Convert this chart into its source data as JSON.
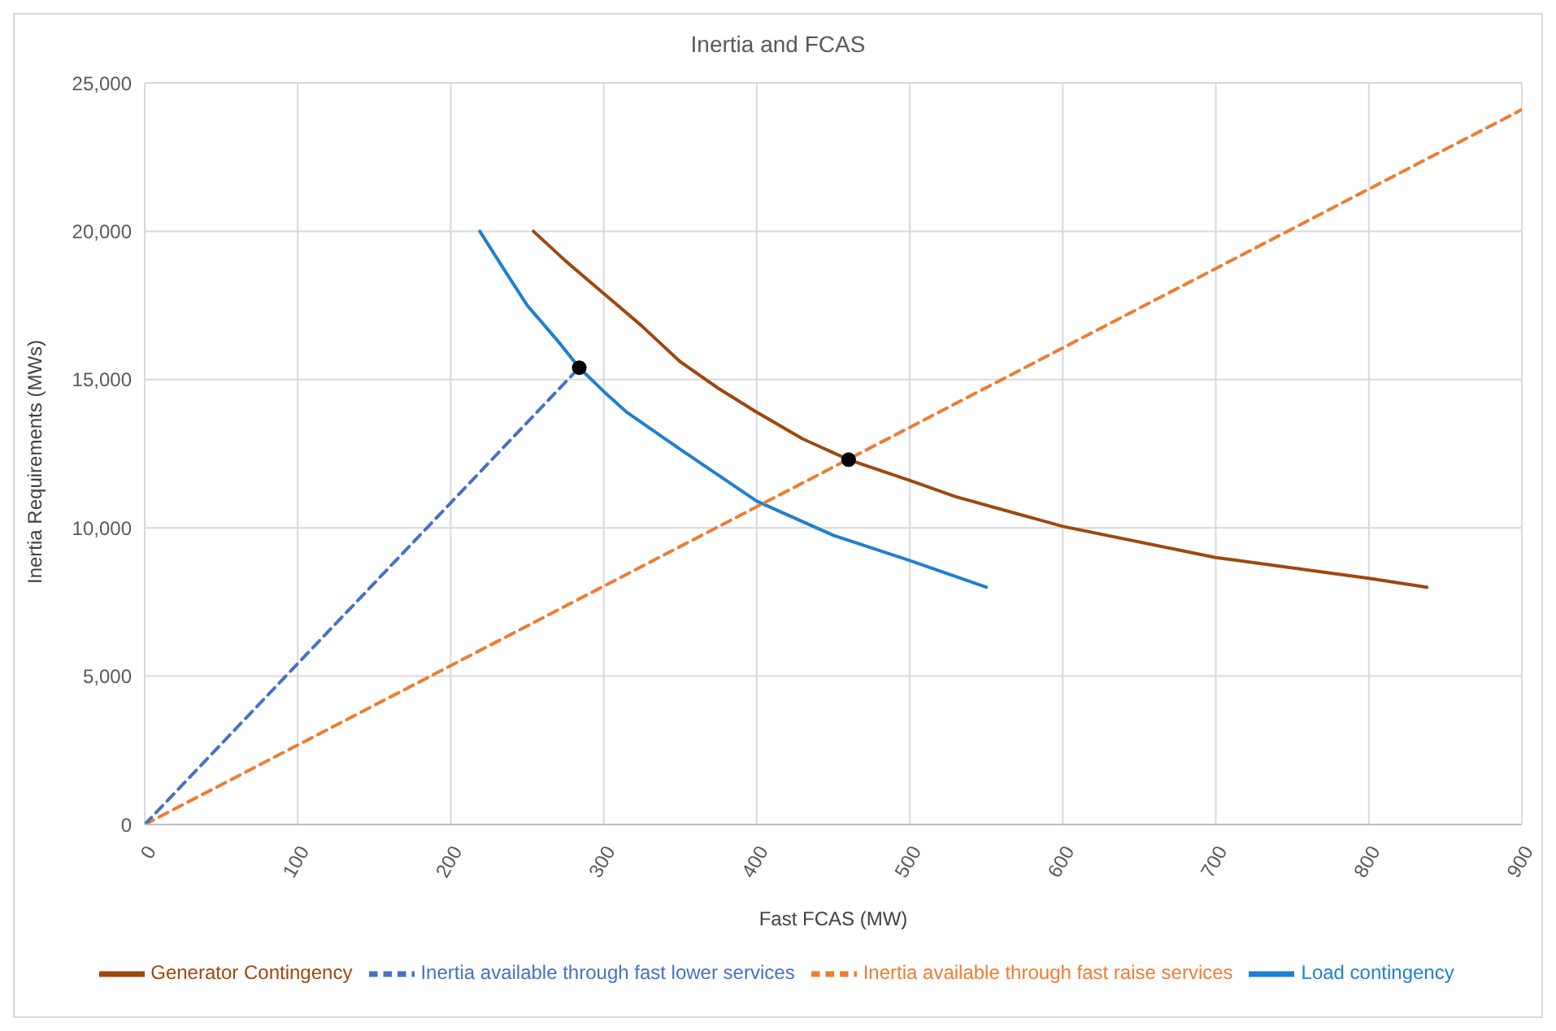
{
  "chart_data": {
    "type": "line",
    "title": "Inertia and FCAS",
    "xlabel": "Fast FCAS (MW)",
    "ylabel": "Inertia Requirements (MWs)",
    "xlim": [
      0,
      900
    ],
    "xticks": [
      0,
      100,
      200,
      300,
      400,
      500,
      600,
      700,
      800,
      900
    ],
    "ylim": [
      0,
      25000
    ],
    "yticks": [
      0,
      {
        "value": 5000,
        "label": "5,000"
      },
      {
        "value": 10000,
        "label": "10,000"
      },
      {
        "value": 15000,
        "label": "15,000"
      },
      {
        "value": 20000,
        "label": "20,000"
      },
      {
        "value": 25000,
        "label": "25,000"
      }
    ],
    "grid": true,
    "legend": "bottom",
    "marker": "none",
    "series": [
      {
        "name": "Generator Contingency",
        "color": "#9e480e",
        "line_style": "solid",
        "x": [
          254,
          275,
          300,
          325,
          350,
          375,
          400,
          430,
          460,
          500,
          530,
          600,
          700,
          800,
          838
        ],
        "values": [
          20000,
          19000,
          17900,
          16800,
          15600,
          14700,
          13900,
          13000,
          12300,
          11600,
          11050,
          10050,
          9000,
          8300,
          8000
        ]
      },
      {
        "name": "Load contingency",
        "color": "#1f7fd0",
        "line_style": "solid",
        "x": [
          219,
          235,
          250,
          270,
          284,
          300,
          315,
          350,
          400,
          450,
          500,
          550
        ],
        "values": [
          20000,
          18700,
          17500,
          16300,
          15400,
          14600,
          13900,
          12650,
          10900,
          9750,
          8900,
          8000
        ]
      },
      {
        "name": "Inertia available through fast raise services",
        "color": "#ed7d31",
        "line_style": "dashed",
        "x": [
          0,
          900
        ],
        "values": [
          0,
          24100
        ]
      },
      {
        "name": "Inertia available through fast lower services",
        "color": "#4472c4",
        "line_style": "dashed",
        "x": [
          0,
          284
        ],
        "values": [
          0,
          15400
        ]
      },
      {
        "type": "scatter",
        "color": "#000000",
        "marker": "circle",
        "x": [
          284,
          460
        ],
        "values": [
          15400,
          12300
        ]
      }
    ]
  }
}
